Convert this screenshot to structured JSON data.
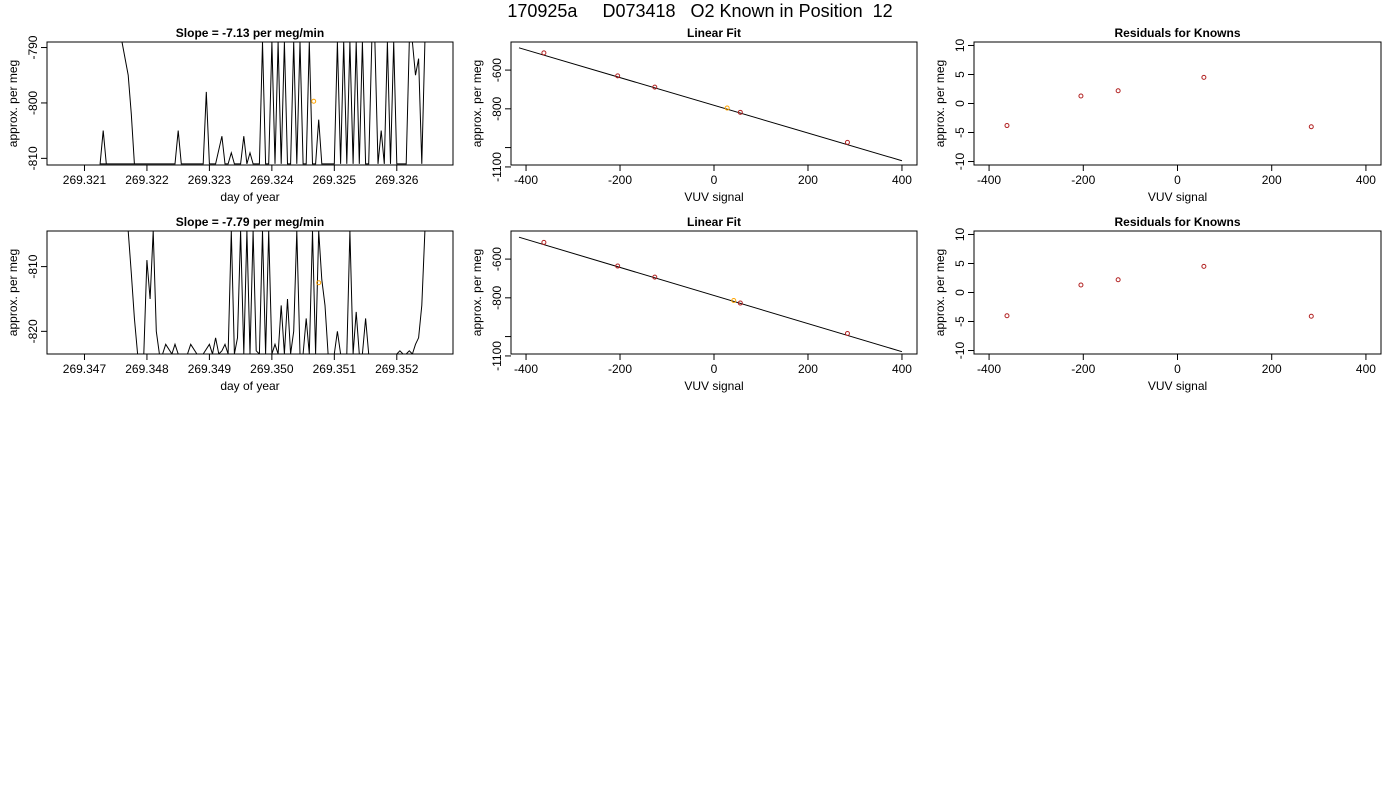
{
  "page_title": "170925a     D073418   O2 Known in Position  12",
  "colors": {
    "trace": "#000000",
    "known_point": "#b22222",
    "sample_point": "#ffa500",
    "frame": "#000000"
  },
  "chart_data": [
    {
      "id": "trace-1",
      "type": "line",
      "title": "Slope =  -7.13  per meg/min",
      "xlabel": "day of year",
      "ylabel": "approx. per meg",
      "xlim": [
        269.3204,
        269.3269
      ],
      "ylim": [
        -811.2,
        -789.0
      ],
      "xticks": [
        269.321,
        269.322,
        269.323,
        269.324,
        269.325,
        269.326
      ],
      "xtick_labels": [
        "269.321",
        "269.322",
        "269.323",
        "269.324",
        "269.325",
        "269.326"
      ],
      "yticks": [
        -790,
        -800,
        -810
      ],
      "ytick_labels": [
        "-790",
        "-800",
        "-810"
      ],
      "series": [
        {
          "x": [
            269.3216,
            269.3217,
            269.32175,
            269.3218,
            269.32185,
            269.3219,
            269.3219,
            269.3221,
            269.32125,
            269.3213,
            269.32135,
            269.3214,
            269.3224,
            269.32245,
            269.3225,
            269.32255,
            269.3226,
            269.3228,
            269.3229,
            269.32295,
            269.323,
            269.32305,
            269.3231,
            269.3232,
            269.32325,
            269.3233,
            269.32335,
            269.3234,
            269.3235,
            269.32355,
            269.3236,
            269.32365,
            269.3237,
            269.3238,
            269.32385,
            269.3239,
            269.32395,
            269.324,
            269.32405,
            269.3241,
            269.32415,
            269.3242,
            269.32425,
            269.3243,
            269.32435,
            269.3244,
            269.32445,
            269.3245,
            269.32455,
            269.3246,
            269.32465,
            269.3247,
            269.32475,
            269.3248,
            269.32485,
            269.3249,
            269.32495,
            269.325,
            269.32505,
            269.3251,
            269.32515,
            269.3252,
            269.32525,
            269.3253,
            269.32535,
            269.3254,
            269.32545,
            269.3255,
            269.32555,
            269.3256,
            269.32565,
            269.3257,
            269.32575,
            269.3258,
            269.32585,
            269.3259,
            269.32595,
            269.326,
            269.32605,
            269.3261,
            269.32615,
            269.3262,
            269.32625,
            269.3263,
            269.32635,
            269.3264,
            269.32645,
            269.3265,
            269.32655
          ],
          "y": [
            -789,
            -795,
            -802,
            -811,
            -811,
            -811,
            -811,
            -811,
            -811,
            -805,
            -811,
            -811,
            -811,
            -811,
            -805,
            -811,
            -811,
            -811,
            -811,
            -798,
            -811,
            -811,
            -811,
            -806,
            -811,
            -811,
            -809,
            -811,
            -811,
            -806,
            -811,
            -809,
            -811,
            -811,
            -789,
            -811,
            -811,
            -789,
            -811,
            -789,
            -811,
            -789,
            -811,
            -811,
            -789,
            -811,
            -789,
            -811,
            -811,
            -789,
            -811,
            -811,
            -803,
            -811,
            -811,
            -811,
            -811,
            -811,
            -789,
            -811,
            -789,
            -811,
            -789,
            -811,
            -789,
            -811,
            -789,
            -811,
            -811,
            -789,
            -789,
            -811,
            -805,
            -811,
            -789,
            -811,
            -789,
            -811,
            -811,
            -811,
            -811,
            -789,
            -789,
            -795,
            -792,
            -811,
            -789,
            -789,
            -789
          ]
        }
      ],
      "highlight": {
        "x": 269.32467,
        "y": -799.7
      }
    },
    {
      "id": "fit-1",
      "type": "scatter",
      "title": "Linear Fit",
      "xlabel": "VUV signal",
      "ylabel": "approx. per meg",
      "xlim": [
        -432,
        432
      ],
      "ylim": [
        -1090,
        -455
      ],
      "xticks": [
        -400,
        -200,
        0,
        200,
        400
      ],
      "xtick_labels": [
        "-400",
        "-200",
        "0",
        "200",
        "400"
      ],
      "yticks": [
        -600,
        -800,
        -1000,
        -1100
      ],
      "ytick_labels": [
        "-600",
        "-800",
        "",
        "-1100"
      ],
      "points": [
        {
          "x": -362,
          "y": -511
        },
        {
          "x": -205,
          "y": -630
        },
        {
          "x": -126,
          "y": -688
        },
        {
          "x": 56,
          "y": -818
        },
        {
          "x": 284,
          "y": -973
        }
      ],
      "highlight": {
        "x": 28,
        "y": -796
      },
      "fit_line": {
        "x": [
          -415,
          400
        ],
        "y": [
          -485,
          -1068
        ]
      }
    },
    {
      "id": "resid-1",
      "type": "scatter",
      "title": "Residuals for Knowns",
      "xlabel": "VUV signal",
      "ylabel": "approx. per meg",
      "xlim": [
        -432,
        432
      ],
      "ylim": [
        -10.6,
        10.6
      ],
      "xticks": [
        -400,
        -200,
        0,
        200,
        400
      ],
      "xtick_labels": [
        "-400",
        "-200",
        "0",
        "200",
        "400"
      ],
      "yticks": [
        10,
        5,
        0,
        -5,
        -10
      ],
      "ytick_labels": [
        "10",
        "5",
        "0",
        "-5",
        "-10"
      ],
      "points": [
        {
          "x": -362,
          "y": -3.8
        },
        {
          "x": -205,
          "y": 1.3
        },
        {
          "x": -126,
          "y": 2.2
        },
        {
          "x": 56,
          "y": 4.5
        },
        {
          "x": 284,
          "y": -4.0
        }
      ]
    },
    {
      "id": "trace-2",
      "type": "line",
      "title": "Slope =  -7.79  per meg/min",
      "xlabel": "day of year",
      "ylabel": "approx. per meg",
      "xlim": [
        269.3464,
        269.3529
      ],
      "ylim": [
        -823.5,
        -804.5
      ],
      "xticks": [
        269.347,
        269.348,
        269.349,
        269.35,
        269.351,
        269.352
      ],
      "xtick_labels": [
        "269.347",
        "269.348",
        "269.349",
        "269.350",
        "269.351",
        "269.352"
      ],
      "yticks": [
        -810,
        -820
      ],
      "ytick_labels": [
        "-810",
        "-820"
      ],
      "series": [
        {
          "x": [
            269.3477,
            269.34775,
            269.3478,
            269.34785,
            269.3479,
            269.34795,
            269.348,
            269.34805,
            269.3481,
            269.34815,
            269.3482,
            269.34825,
            269.3483,
            269.3484,
            269.34845,
            269.3485,
            269.3486,
            269.34865,
            269.3487,
            269.3488,
            269.3489,
            269.349,
            269.34905,
            269.3491,
            269.34915,
            269.3492,
            269.34925,
            269.3493,
            269.34935,
            269.3494,
            269.34945,
            269.3495,
            269.34955,
            269.3496,
            269.34965,
            269.3497,
            269.34975,
            269.3498,
            269.34985,
            269.3499,
            269.34995,
            269.35,
            269.35005,
            269.3501,
            269.35015,
            269.3502,
            269.35025,
            269.3503,
            269.35035,
            269.3504,
            269.35045,
            269.3505,
            269.35055,
            269.3506,
            269.35065,
            269.3507,
            269.35075,
            269.3508,
            269.35085,
            269.3509,
            269.35095,
            269.351,
            269.35105,
            269.3511,
            269.35115,
            269.3512,
            269.35125,
            269.3513,
            269.35135,
            269.3514,
            269.35145,
            269.3515,
            269.35155,
            269.3516,
            269.35165,
            269.3517,
            269.35175,
            269.3518,
            269.35185,
            269.3519,
            269.35195,
            269.352,
            269.35205,
            269.3521,
            269.35215,
            269.3522,
            269.35225,
            269.3523,
            269.35235,
            269.3524,
            269.35245
          ],
          "y": [
            -804.5,
            -811,
            -818,
            -823.5,
            -823.5,
            -823.5,
            -809,
            -815,
            -804.5,
            -820,
            -823.5,
            -823.5,
            -822,
            -823.5,
            -822,
            -823.5,
            -823.5,
            -823.5,
            -822,
            -823.5,
            -823.5,
            -822,
            -823.5,
            -821,
            -823.5,
            -823,
            -822,
            -823.5,
            -804.5,
            -823.5,
            -821,
            -804.5,
            -823.5,
            -804.5,
            -823.5,
            -804.5,
            -823,
            -823.5,
            -804.5,
            -823.5,
            -804.5,
            -823.5,
            -822,
            -823.5,
            -816,
            -823.5,
            -815,
            -823.5,
            -820,
            -804.5,
            -823.5,
            -823.5,
            -818,
            -823.5,
            -804.5,
            -823.5,
            -804.5,
            -812,
            -816,
            -823.5,
            -823.5,
            -823.5,
            -820,
            -823.5,
            -823.5,
            -823.5,
            -804.5,
            -823.5,
            -817,
            -823.5,
            -823.5,
            -818,
            -823.5,
            -823.5,
            -823.5,
            -823.5,
            -823.5,
            -823.5,
            -823.5,
            -823.5,
            -823.5,
            -823.5,
            -823,
            -823.5,
            -823.5,
            -823,
            -823.5,
            -822,
            -821,
            -816,
            -804.5
          ]
        }
      ],
      "highlight": {
        "x": 269.35075,
        "y": -812.5
      }
    },
    {
      "id": "fit-2",
      "type": "scatter",
      "title": "Linear Fit",
      "xlabel": "VUV signal",
      "ylabel": "approx. per meg",
      "xlim": [
        -432,
        432
      ],
      "ylim": [
        -1090,
        -455
      ],
      "xticks": [
        -400,
        -200,
        0,
        200,
        400
      ],
      "xtick_labels": [
        "-400",
        "-200",
        "0",
        "200",
        "400"
      ],
      "yticks": [
        -600,
        -800,
        -1000,
        -1100
      ],
      "ytick_labels": [
        "-600",
        "-800",
        "",
        "-1100"
      ],
      "points": [
        {
          "x": -362,
          "y": -514
        },
        {
          "x": -205,
          "y": -636
        },
        {
          "x": -126,
          "y": -693
        },
        {
          "x": 56,
          "y": -827
        },
        {
          "x": 284,
          "y": -984
        }
      ],
      "highlight": {
        "x": 42,
        "y": -814
      },
      "fit_line": {
        "x": [
          -415,
          400
        ],
        "y": [
          -487,
          -1078
        ]
      }
    },
    {
      "id": "resid-2",
      "type": "scatter",
      "title": "Residuals for Knowns",
      "xlabel": "VUV signal",
      "ylabel": "approx. per meg",
      "xlim": [
        -432,
        432
      ],
      "ylim": [
        -10.6,
        10.6
      ],
      "xticks": [
        -400,
        -200,
        0,
        200,
        400
      ],
      "xtick_labels": [
        "-400",
        "-200",
        "0",
        "200",
        "400"
      ],
      "yticks": [
        10,
        5,
        0,
        -5,
        -10
      ],
      "ytick_labels": [
        "10",
        "5",
        "0",
        "-5",
        "-10"
      ],
      "points": [
        {
          "x": -362,
          "y": -4.0
        },
        {
          "x": -205,
          "y": 1.3
        },
        {
          "x": -126,
          "y": 2.2
        },
        {
          "x": 56,
          "y": 4.5
        },
        {
          "x": 284,
          "y": -4.1
        }
      ]
    }
  ]
}
